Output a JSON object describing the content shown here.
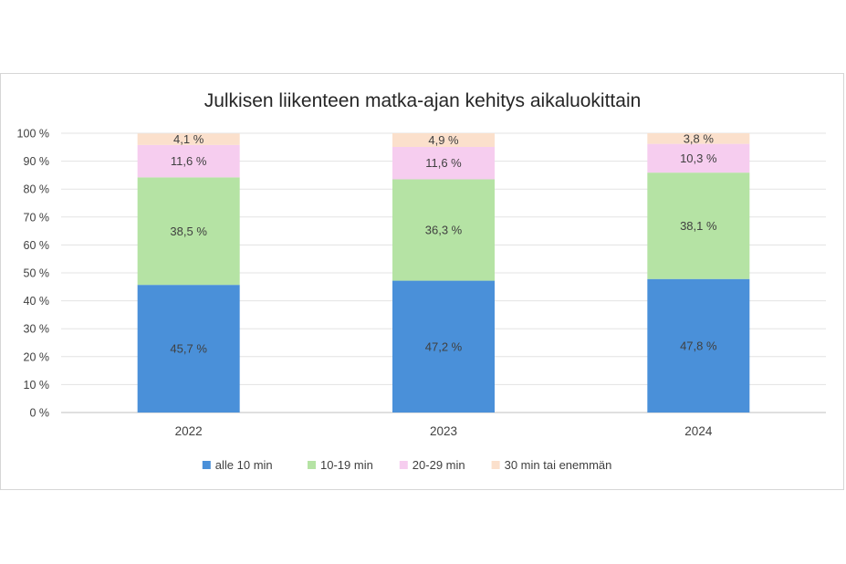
{
  "chart_data": {
    "type": "bar",
    "stacked": true,
    "title": "Julkisen liikenteen matka-ajan kehitys aikaluokittain",
    "categories": [
      "2022",
      "2023",
      "2024"
    ],
    "series": [
      {
        "name": "alle 10 min",
        "color": "#4a90d9",
        "values": [
          45.7,
          47.2,
          47.8
        ],
        "labels": [
          "45,7 %",
          "47,2 %",
          "47,8 %"
        ]
      },
      {
        "name": "10-19 min",
        "color": "#b5e3a4",
        "values": [
          38.5,
          36.3,
          38.1
        ],
        "labels": [
          "38,5 %",
          "36,3 %",
          "38,1 %"
        ]
      },
      {
        "name": "20-29 min",
        "color": "#f6cdef",
        "values": [
          11.6,
          11.6,
          10.3
        ],
        "labels": [
          "11,6 %",
          "11,6 %",
          "10,3 %"
        ]
      },
      {
        "name": "30 min tai enemmän",
        "color": "#fbe0cc",
        "values": [
          4.1,
          4.9,
          3.8
        ],
        "labels": [
          "4,1 %",
          "4,9 %",
          "3,8 %"
        ]
      }
    ],
    "yticks": [
      "0 %",
      "10 %",
      "20 %",
      "30 %",
      "40 %",
      "50 %",
      "60 %",
      "70 %",
      "80 %",
      "90 %",
      "100 %"
    ],
    "ylim": [
      0,
      100
    ],
    "grid": true,
    "legend": "bottom"
  }
}
